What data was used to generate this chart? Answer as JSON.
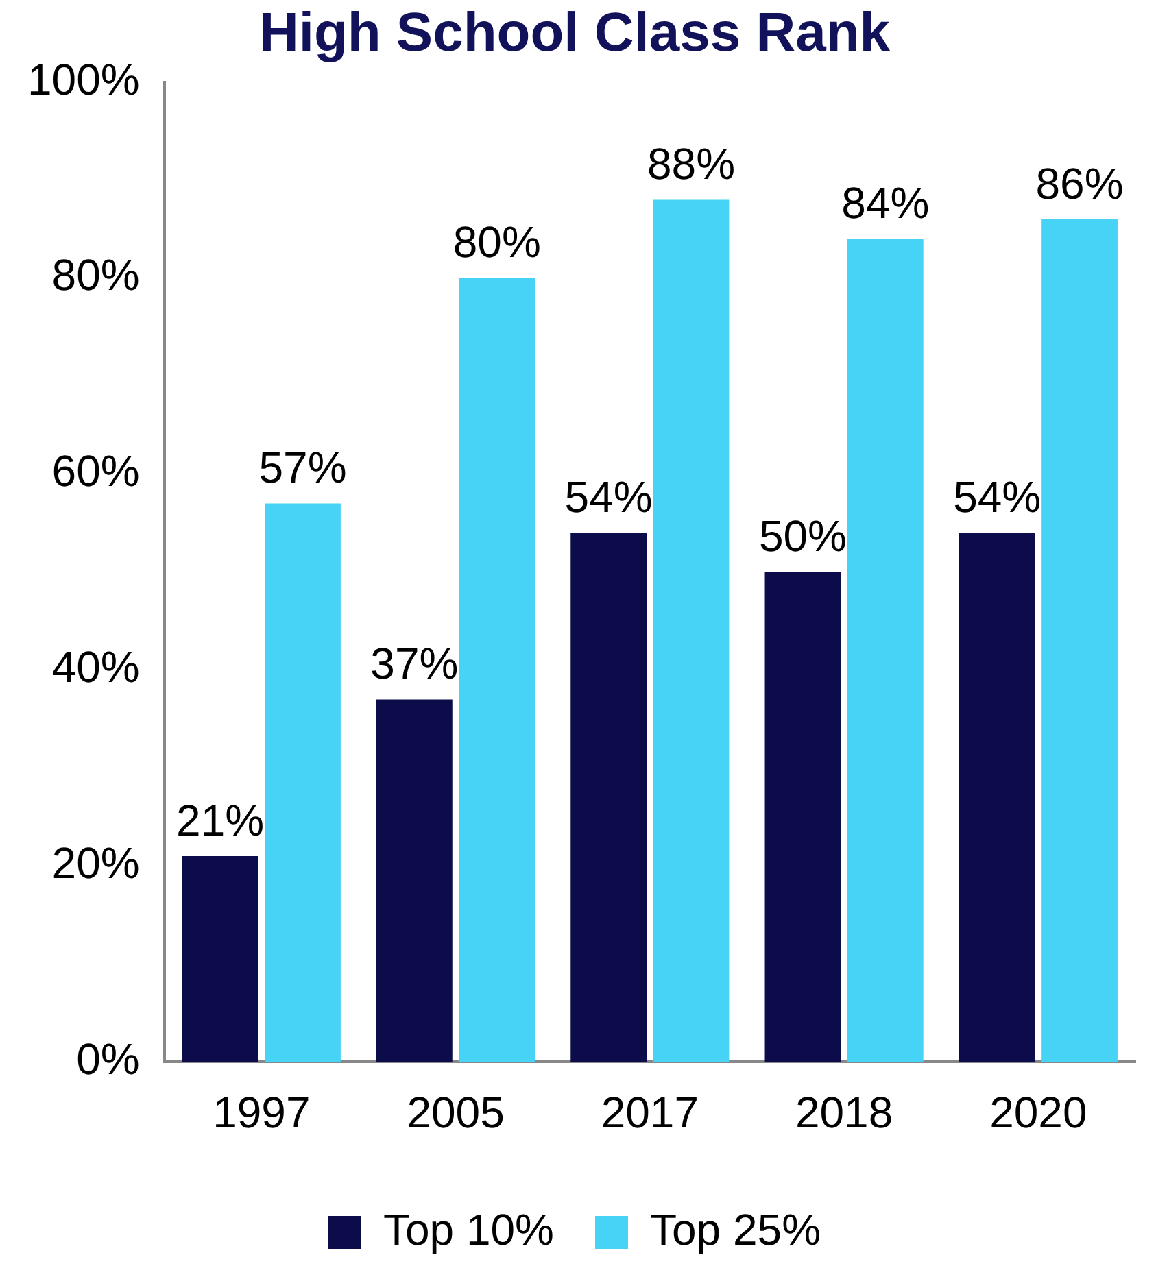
{
  "chart_data": {
    "type": "bar",
    "title": "High School Class Rank",
    "categories": [
      "1997",
      "2005",
      "2017",
      "2018",
      "2020"
    ],
    "series": [
      {
        "name": "Top 10%",
        "color": "#0c0c4a",
        "values": [
          21,
          37,
          54,
          50,
          54
        ],
        "value_labels": [
          "21%",
          "37%",
          "54%",
          "50%",
          "54%"
        ]
      },
      {
        "name": "Top 25%",
        "color": "#46d3f5",
        "values": [
          57,
          80,
          88,
          84,
          86
        ],
        "value_labels": [
          "57%",
          "80%",
          "88%",
          "84%",
          "86%"
        ]
      }
    ],
    "ylim": [
      0,
      100
    ],
    "yticks": [
      {
        "value": 0,
        "label": "0%"
      },
      {
        "value": 20,
        "label": "20%"
      },
      {
        "value": 40,
        "label": "40%"
      },
      {
        "value": 60,
        "label": "60%"
      },
      {
        "value": 80,
        "label": "80%"
      },
      {
        "value": 100,
        "label": "100%"
      }
    ],
    "grid": false,
    "legend": "bottom"
  }
}
